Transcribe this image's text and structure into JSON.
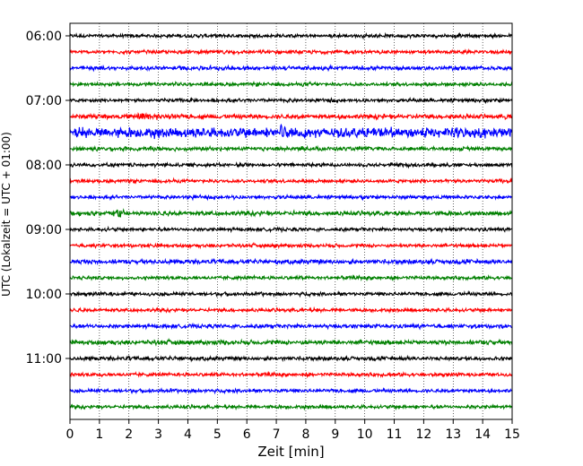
{
  "chart_data": {
    "type": "line",
    "title": "",
    "xlabel": "Zeit  [min]",
    "ylabel": "UTC (Lokalzeit = UTC + 01:00)",
    "xlim": [
      0,
      15
    ],
    "xticks": [
      "0",
      "1",
      "2",
      "3",
      "4",
      "5",
      "6",
      "7",
      "8",
      "9",
      "10",
      "11",
      "12",
      "13",
      "14",
      "15"
    ],
    "yticks": [
      "06:00",
      "07:00",
      "08:00",
      "09:00",
      "10:00",
      "11:00"
    ],
    "grid": "vertical-dotted",
    "trace_interval_min": 15,
    "start_time": "06:00",
    "color_cycle": [
      "#000000",
      "#ff0000",
      "#0000ff",
      "#008000"
    ],
    "traces": [
      {
        "start": "06:00",
        "color": "#000000",
        "amplitude": 0.7
      },
      {
        "start": "06:15",
        "color": "#ff0000",
        "amplitude": 0.7
      },
      {
        "start": "06:30",
        "color": "#0000ff",
        "amplitude": 0.8
      },
      {
        "start": "06:45",
        "color": "#008000",
        "amplitude": 0.7
      },
      {
        "start": "07:00",
        "color": "#000000",
        "amplitude": 0.7
      },
      {
        "start": "07:15",
        "color": "#ff0000",
        "amplitude": 0.9,
        "events": [
          2.4
        ]
      },
      {
        "start": "07:30",
        "color": "#0000ff",
        "amplitude": 2.0,
        "events": [
          7.2
        ]
      },
      {
        "start": "07:45",
        "color": "#008000",
        "amplitude": 0.8
      },
      {
        "start": "08:00",
        "color": "#000000",
        "amplitude": 0.7
      },
      {
        "start": "08:15",
        "color": "#ff0000",
        "amplitude": 0.7
      },
      {
        "start": "08:30",
        "color": "#0000ff",
        "amplitude": 0.7
      },
      {
        "start": "08:45",
        "color": "#008000",
        "amplitude": 0.9,
        "events": [
          1.5
        ]
      },
      {
        "start": "09:00",
        "color": "#000000",
        "amplitude": 0.7
      },
      {
        "start": "09:15",
        "color": "#ff0000",
        "amplitude": 0.7
      },
      {
        "start": "09:30",
        "color": "#0000ff",
        "amplitude": 0.9
      },
      {
        "start": "09:45",
        "color": "#008000",
        "amplitude": 0.7
      },
      {
        "start": "10:00",
        "color": "#000000",
        "amplitude": 0.7
      },
      {
        "start": "10:15",
        "color": "#ff0000",
        "amplitude": 0.7
      },
      {
        "start": "10:30",
        "color": "#0000ff",
        "amplitude": 0.8
      },
      {
        "start": "10:45",
        "color": "#008000",
        "amplitude": 0.9
      },
      {
        "start": "11:00",
        "color": "#000000",
        "amplitude": 0.8
      },
      {
        "start": "11:15",
        "color": "#ff0000",
        "amplitude": 0.7
      },
      {
        "start": "11:30",
        "color": "#0000ff",
        "amplitude": 0.7
      },
      {
        "start": "11:45",
        "color": "#008000",
        "amplitude": 0.7
      }
    ]
  }
}
